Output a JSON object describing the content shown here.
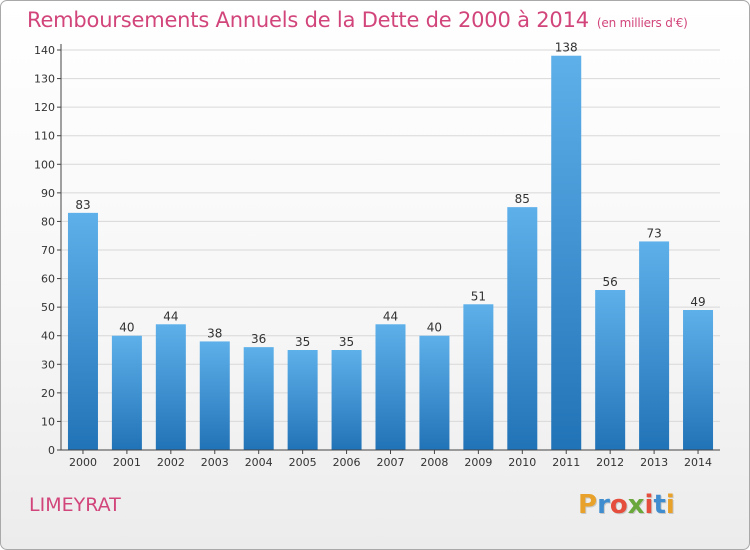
{
  "title": "Remboursements Annuels de la Dette de 2000 à 2014",
  "subtitle": "(en milliers d'€)",
  "location": "LIMEYRAT",
  "brand": {
    "letters": [
      "P",
      "r",
      "o",
      "x",
      "i",
      "t",
      "i"
    ],
    "colors": [
      "#e8a12a",
      "#3f8ccf",
      "#e54d3c",
      "#6aa83c",
      "#e54d3c",
      "#3f8ccf",
      "#e8a12a"
    ]
  },
  "colors": {
    "title": "#d2457b",
    "bar_light": "#5eb0ea",
    "bar_dark": "#2173b7",
    "grid": "#d8d8d8",
    "axis": "#444444",
    "label": "#333333"
  },
  "chart_data": {
    "type": "bar",
    "title": "Remboursements Annuels de la Dette de 2000 à 2014",
    "xlabel": "",
    "ylabel": "",
    "categories": [
      "2000",
      "2001",
      "2002",
      "2003",
      "2004",
      "2005",
      "2006",
      "2007",
      "2008",
      "2009",
      "2010",
      "2011",
      "2012",
      "2013",
      "2014"
    ],
    "values": [
      83,
      40,
      44,
      38,
      36,
      35,
      35,
      44,
      40,
      51,
      85,
      138,
      56,
      73,
      49
    ],
    "ylim": [
      0,
      140
    ],
    "yticks": [
      0,
      10,
      20,
      30,
      40,
      50,
      60,
      70,
      80,
      90,
      100,
      110,
      120,
      130,
      140
    ],
    "grid": true,
    "legend": "none"
  }
}
